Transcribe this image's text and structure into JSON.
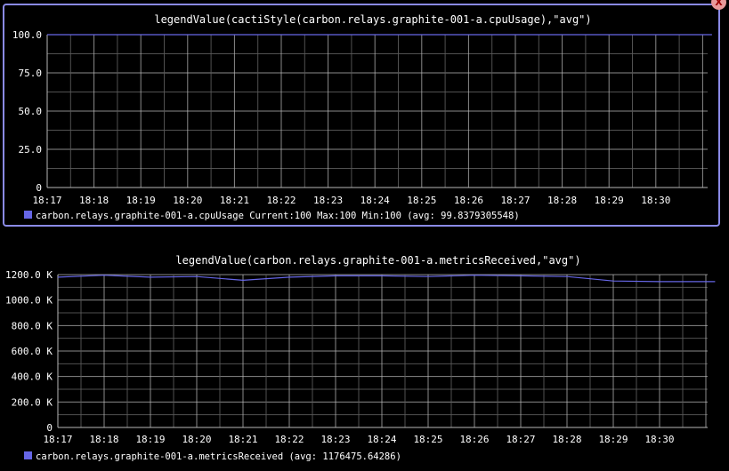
{
  "close_label": "X",
  "colors": {
    "background": "#000000",
    "grid_major": "#b8b8b8",
    "grid_minor": "#5a5a5a",
    "series": "#6666e6",
    "frame": "#8a8ae6",
    "text": "#ffffff"
  },
  "chart_data": [
    {
      "type": "line",
      "title": "legendValue(cactiStyle(carbon.relays.graphite-001-a.cpuUsage),\"avg\")",
      "categories": [
        "18:17",
        "18:18",
        "18:19",
        "18:20",
        "18:21",
        "18:22",
        "18:23",
        "18:24",
        "18:25",
        "18:26",
        "18:27",
        "18:28",
        "18:29",
        "18:30"
      ],
      "yticks": [
        "100.0",
        "75.0",
        "50.0",
        "25.0",
        "0"
      ],
      "ylim": [
        0,
        100
      ],
      "xlim": [
        0,
        14.2
      ],
      "grid": true,
      "legend_position": "bottom-left",
      "series": [
        {
          "name": "carbon.relays.graphite-001-a.cpuUsage",
          "legend_text": "carbon.relays.graphite-001-a.cpuUsage Current:100   Max:100   Min:100    (avg: 99.8379305548)",
          "x": [
            0,
            14.2
          ],
          "values": [
            100,
            100
          ]
        }
      ]
    },
    {
      "type": "line",
      "title": "legendValue(carbon.relays.graphite-001-a.metricsReceived,\"avg\")",
      "categories": [
        "18:17",
        "18:18",
        "18:19",
        "18:20",
        "18:21",
        "18:22",
        "18:23",
        "18:24",
        "18:25",
        "18:26",
        "18:27",
        "18:28",
        "18:29",
        "18:30"
      ],
      "yticks": [
        "1200.0 K",
        "1000.0 K",
        "800.0 K",
        "600.0 K",
        "400.0 K",
        "200.0 K",
        "0"
      ],
      "ylim": [
        0,
        1200
      ],
      "xlim": [
        0,
        14.2
      ],
      "grid": true,
      "legend_position": "bottom-left",
      "series": [
        {
          "name": "carbon.relays.graphite-001-a.metricsReceived",
          "legend_text": "carbon.relays.graphite-001-a.metricsReceived (avg: 1176475.64286)",
          "x": [
            0,
            1,
            2,
            3,
            4,
            5,
            6,
            7,
            8,
            9,
            10,
            11,
            12,
            13,
            14.2
          ],
          "values": [
            1180,
            1195,
            1180,
            1185,
            1155,
            1180,
            1190,
            1190,
            1185,
            1195,
            1190,
            1185,
            1150,
            1145,
            1145
          ]
        }
      ]
    }
  ]
}
